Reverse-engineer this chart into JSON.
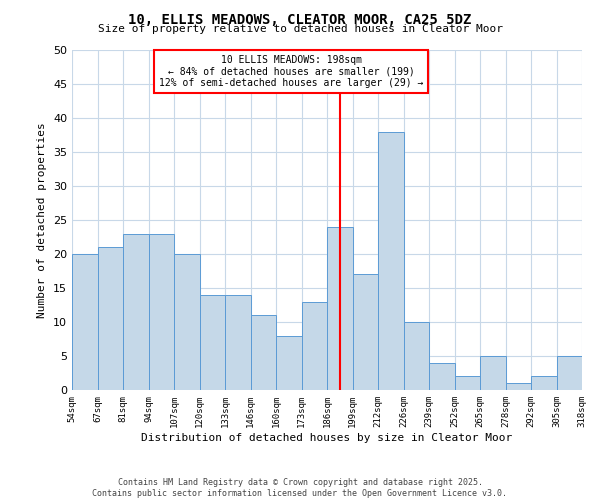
{
  "title": "10, ELLIS MEADOWS, CLEATOR MOOR, CA25 5DZ",
  "subtitle": "Size of property relative to detached houses in Cleator Moor",
  "xlabel": "Distribution of detached houses by size in Cleator Moor",
  "ylabel": "Number of detached properties",
  "bar_values": [
    20,
    21,
    23,
    23,
    20,
    14,
    14,
    11,
    8,
    13,
    24,
    17,
    38,
    10,
    4,
    2,
    5,
    1,
    2,
    5
  ],
  "xtick_labels": [
    "54sqm",
    "67sqm",
    "81sqm",
    "94sqm",
    "107sqm",
    "120sqm",
    "133sqm",
    "146sqm",
    "160sqm",
    "173sqm",
    "186sqm",
    "199sqm",
    "212sqm",
    "226sqm",
    "239sqm",
    "252sqm",
    "265sqm",
    "278sqm",
    "292sqm",
    "305sqm",
    "318sqm"
  ],
  "ylim": [
    0,
    50
  ],
  "yticks": [
    0,
    5,
    10,
    15,
    20,
    25,
    30,
    35,
    40,
    45,
    50
  ],
  "bar_color": "#c5d8e8",
  "bar_edge_color": "#5b9bd5",
  "red_line_index": 10.5,
  "annotation_title": "10 ELLIS MEADOWS: 198sqm",
  "annotation_line2": "← 84% of detached houses are smaller (199)",
  "annotation_line3": "12% of semi-detached houses are larger (29) →",
  "footer_line1": "Contains HM Land Registry data © Crown copyright and database right 2025.",
  "footer_line2": "Contains public sector information licensed under the Open Government Licence v3.0.",
  "background_color": "#ffffff",
  "grid_color": "#c8d8e8"
}
